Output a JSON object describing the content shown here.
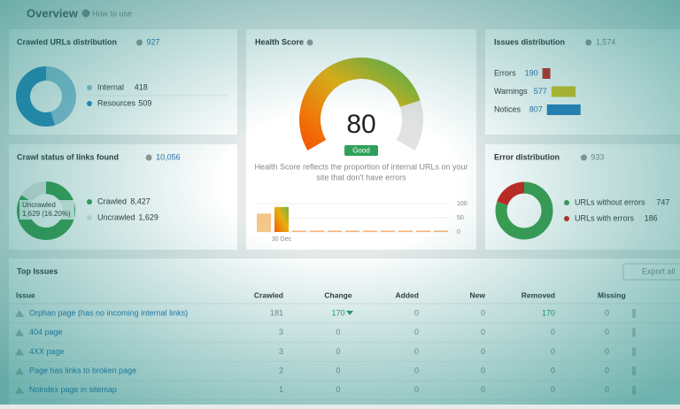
{
  "header": {
    "title": "Overview",
    "help": "How to use"
  },
  "crawled_urls": {
    "title": "Crawled URLs distribution",
    "total": 927,
    "items": [
      {
        "name": "Internal",
        "value": 418,
        "color": "#8fc3da"
      },
      {
        "name": "Resources",
        "value": 509,
        "color": "#2d8bc0"
      }
    ]
  },
  "crawl_status": {
    "title": "Crawl status of links found",
    "total": {
      "value": 10056,
      "label": "10,056"
    },
    "donut_name": "Uncrawled",
    "donut_label": "1,629 (16.20%)",
    "items": [
      {
        "name": "Crawled",
        "value": {
          "value": 8427,
          "label": "8,427"
        },
        "color": "#3d9e4f"
      },
      {
        "name": "Uncrawled",
        "value": {
          "value": 1629,
          "label": "1,629"
        },
        "color": "#e4e6e6"
      }
    ]
  },
  "health": {
    "title": "Health Score",
    "score": 80,
    "status": "Good",
    "description": [
      "Health Score reflects the proportion of internal URLs on your",
      "site that don't have errors"
    ],
    "chart": {
      "categories": [
        null,
        "30 Dec",
        null,
        null,
        null,
        null,
        null,
        null,
        null,
        null,
        null
      ],
      "values": [
        65,
        88,
        0,
        0,
        0,
        0,
        0,
        0,
        0,
        0,
        0
      ],
      "ylim": [
        0,
        100
      ],
      "yticks": [
        0,
        50,
        100
      ]
    }
  },
  "issues": {
    "title": "Issues distribution",
    "total": {
      "value": 1574,
      "label": "1,574"
    },
    "items": [
      {
        "name": "Errors",
        "value": 190,
        "color": "#c8241f"
      },
      {
        "name": "Warnings",
        "value": 577,
        "color": "#d6c21c"
      },
      {
        "name": "Notices",
        "value": 807,
        "color": "#2a7fc0"
      }
    ]
  },
  "errors": {
    "title": "Error distribution",
    "total": 933,
    "items": [
      {
        "name": "URLs without errors",
        "value": 747,
        "color": "#3d9e4f"
      },
      {
        "name": "URLs with errors",
        "value": 186,
        "color": "#c8241f"
      }
    ]
  },
  "table": {
    "title": "Top Issues",
    "export": "Export all",
    "columns": [
      "Issue",
      "Crawled",
      "Change",
      "Added",
      "New",
      "Removed",
      "Missing"
    ],
    "rows": [
      [
        "Orphan page (has no incoming internal links)",
        181,
        170,
        0,
        0,
        170,
        0
      ],
      [
        "404 page",
        3,
        0,
        0,
        0,
        0,
        0
      ],
      [
        "4XX page",
        3,
        0,
        0,
        0,
        0,
        0
      ],
      [
        "Page has links to broken page",
        2,
        0,
        0,
        0,
        0,
        0
      ],
      [
        "Noindex page in sitemap",
        1,
        0,
        0,
        0,
        0,
        0
      ]
    ]
  }
}
